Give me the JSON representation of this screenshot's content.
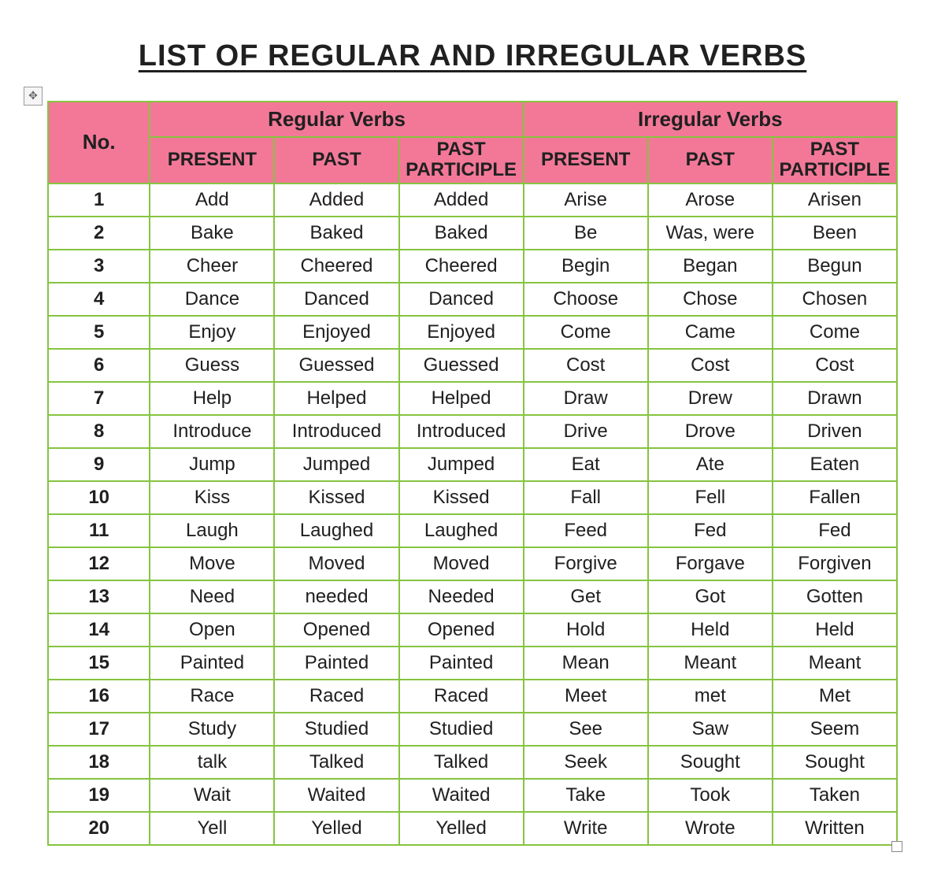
{
  "title": "LIST OF REGULAR AND IRREGULAR VERBS",
  "colors": {
    "header_bg": "#f37898",
    "body_bg": "#ffffff",
    "grid_border": "#86c440",
    "text": "#202020"
  },
  "table": {
    "group_headers": {
      "no": "No.",
      "regular": "Regular Verbs",
      "irregular": "Irregular Verbs"
    },
    "sub_headers": {
      "present": "PRESENT",
      "past": "PAST",
      "past_participle_line1": "PAST",
      "past_participle_line2": "PARTICIPLE"
    },
    "rows": [
      {
        "no": "1",
        "rp": "Add",
        "rpa": "Added",
        "rpp": "Added",
        "ip": "Arise",
        "ipa": "Arose",
        "ipp": "Arisen"
      },
      {
        "no": "2",
        "rp": "Bake",
        "rpa": "Baked",
        "rpp": "Baked",
        "ip": "Be",
        "ipa": "Was, were",
        "ipp": "Been"
      },
      {
        "no": "3",
        "rp": "Cheer",
        "rpa": "Cheered",
        "rpp": "Cheered",
        "ip": "Begin",
        "ipa": "Began",
        "ipp": "Begun"
      },
      {
        "no": "4",
        "rp": "Dance",
        "rpa": "Danced",
        "rpp": "Danced",
        "ip": "Choose",
        "ipa": "Chose",
        "ipp": "Chosen"
      },
      {
        "no": "5",
        "rp": "Enjoy",
        "rpa": "Enjoyed",
        "rpp": "Enjoyed",
        "ip": "Come",
        "ipa": "Came",
        "ipp": "Come"
      },
      {
        "no": "6",
        "rp": "Guess",
        "rpa": "Guessed",
        "rpp": "Guessed",
        "ip": "Cost",
        "ipa": "Cost",
        "ipp": "Cost"
      },
      {
        "no": "7",
        "rp": "Help",
        "rpa": "Helped",
        "rpp": "Helped",
        "ip": "Draw",
        "ipa": "Drew",
        "ipp": "Drawn"
      },
      {
        "no": "8",
        "rp": "Introduce",
        "rpa": "Introduced",
        "rpp": "Introduced",
        "ip": "Drive",
        "ipa": "Drove",
        "ipp": "Driven"
      },
      {
        "no": "9",
        "rp": "Jump",
        "rpa": "Jumped",
        "rpp": "Jumped",
        "ip": "Eat",
        "ipa": "Ate",
        "ipp": "Eaten"
      },
      {
        "no": "10",
        "rp": "Kiss",
        "rpa": "Kissed",
        "rpp": "Kissed",
        "ip": "Fall",
        "ipa": "Fell",
        "ipp": "Fallen"
      },
      {
        "no": "11",
        "rp": "Laugh",
        "rpa": "Laughed",
        "rpp": "Laughed",
        "ip": "Feed",
        "ipa": "Fed",
        "ipp": "Fed"
      },
      {
        "no": "12",
        "rp": "Move",
        "rpa": "Moved",
        "rpp": "Moved",
        "ip": "Forgive",
        "ipa": "Forgave",
        "ipp": "Forgiven"
      },
      {
        "no": "13",
        "rp": "Need",
        "rpa": "needed",
        "rpp": "Needed",
        "ip": "Get",
        "ipa": "Got",
        "ipp": "Gotten"
      },
      {
        "no": "14",
        "rp": "Open",
        "rpa": "Opened",
        "rpp": "Opened",
        "ip": "Hold",
        "ipa": "Held",
        "ipp": "Held"
      },
      {
        "no": "15",
        "rp": "Painted",
        "rpa": "Painted",
        "rpp": "Painted",
        "ip": "Mean",
        "ipa": "Meant",
        "ipp": "Meant"
      },
      {
        "no": "16",
        "rp": "Race",
        "rpa": "Raced",
        "rpp": "Raced",
        "ip": "Meet",
        "ipa": "met",
        "ipp": "Met"
      },
      {
        "no": "17",
        "rp": "Study",
        "rpa": "Studied",
        "rpp": "Studied",
        "ip": "See",
        "ipa": "Saw",
        "ipp": "Seem"
      },
      {
        "no": "18",
        "rp": "talk",
        "rpa": "Talked",
        "rpp": "Talked",
        "ip": "Seek",
        "ipa": "Sought",
        "ipp": "Sought"
      },
      {
        "no": "19",
        "rp": "Wait",
        "rpa": "Waited",
        "rpp": "Waited",
        "ip": "Take",
        "ipa": "Took",
        "ipp": "Taken"
      },
      {
        "no": "20",
        "rp": "Yell",
        "rpa": "Yelled",
        "rpp": "Yelled",
        "ip": "Write",
        "ipa": "Wrote",
        "ipp": "Written"
      }
    ]
  }
}
